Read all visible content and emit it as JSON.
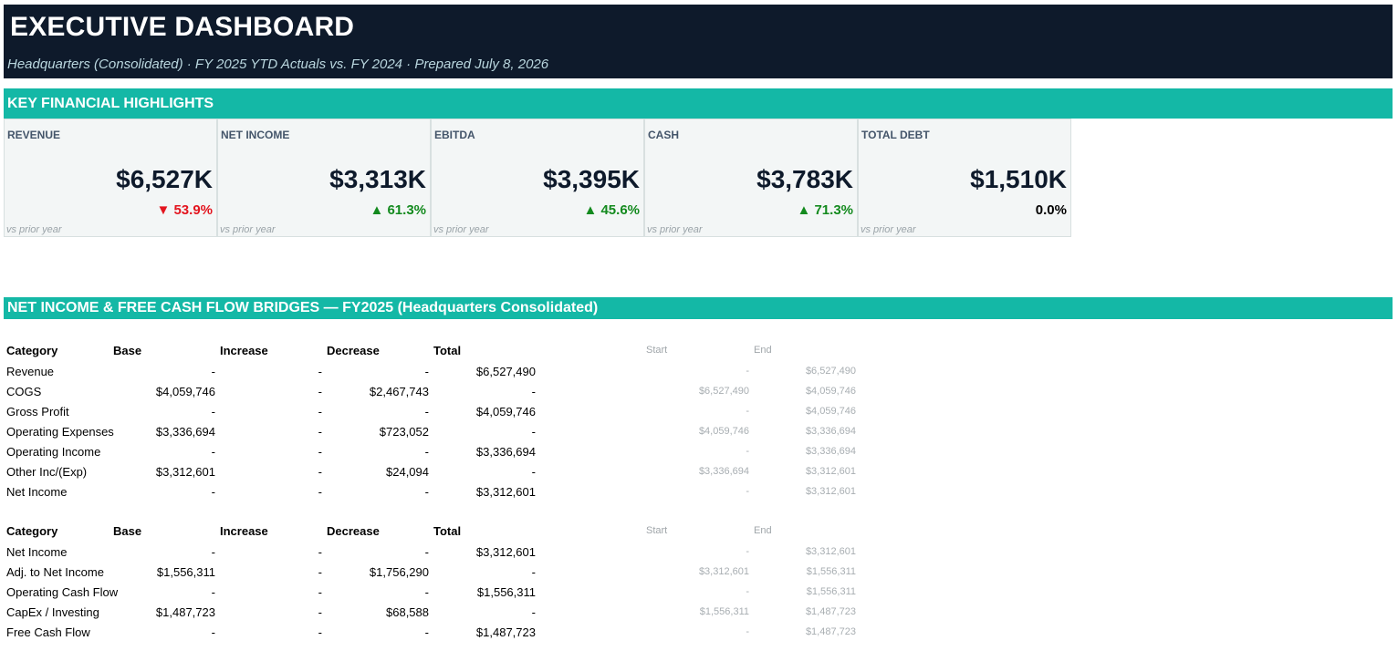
{
  "header": {
    "title": "EXECUTIVE DASHBOARD",
    "subtitle": "Headquarters (Consolidated)  ·  FY 2025 YTD Actuals vs. FY 2024  ·  Prepared July 8, 2026"
  },
  "kpi_section": {
    "title": "KEY FINANCIAL HIGHLIGHTS",
    "cards": [
      {
        "label": "REVENUE",
        "value": "$6,527K",
        "change": "▼ 53.9%",
        "direction": "down",
        "foot": "vs prior year"
      },
      {
        "label": "NET INCOME",
        "value": "$3,313K",
        "change": "▲ 61.3%",
        "direction": "up",
        "foot": "vs prior year"
      },
      {
        "label": "EBITDA",
        "value": "$3,395K",
        "change": "▲ 45.6%",
        "direction": "up",
        "foot": "vs prior year"
      },
      {
        "label": "CASH",
        "value": "$3,783K",
        "change": "▲ 71.3%",
        "direction": "up",
        "foot": "vs prior year"
      },
      {
        "label": "TOTAL DEBT",
        "value": "$1,510K",
        "change": "0.0%",
        "direction": "flat",
        "foot": "vs prior year"
      }
    ]
  },
  "bridge_section": {
    "title": "NET INCOME & FREE CASH FLOW BRIDGES — FY2025 (Headquarters Consolidated)",
    "columns": {
      "category": "Category",
      "base": "Base",
      "increase": "Increase",
      "decrease": "Decrease",
      "total": "Total",
      "start": "Start",
      "end": "End"
    },
    "tables": [
      {
        "rows": [
          {
            "category": "Revenue",
            "base": "-",
            "increase": "-",
            "decrease": "-",
            "total": "$6,527,490",
            "start": "-",
            "end": "$6,527,490"
          },
          {
            "category": "COGS",
            "base": "$4,059,746",
            "increase": "-",
            "decrease": "$2,467,743",
            "total": "-",
            "start": "$6,527,490",
            "end": "$4,059,746"
          },
          {
            "category": "Gross Profit",
            "base": "-",
            "increase": "-",
            "decrease": "-",
            "total": "$4,059,746",
            "start": "-",
            "end": "$4,059,746"
          },
          {
            "category": "Operating Expenses",
            "base": "$3,336,694",
            "increase": "-",
            "decrease": "$723,052",
            "total": "-",
            "start": "$4,059,746",
            "end": "$3,336,694"
          },
          {
            "category": "Operating Income",
            "base": "-",
            "increase": "-",
            "decrease": "-",
            "total": "$3,336,694",
            "start": "-",
            "end": "$3,336,694"
          },
          {
            "category": "Other Inc/(Exp)",
            "base": "$3,312,601",
            "increase": "-",
            "decrease": "$24,094",
            "total": "-",
            "start": "$3,336,694",
            "end": "$3,312,601"
          },
          {
            "category": "Net Income",
            "base": "-",
            "increase": "-",
            "decrease": "-",
            "total": "$3,312,601",
            "start": "-",
            "end": "$3,312,601"
          }
        ]
      },
      {
        "rows": [
          {
            "category": "Net Income",
            "base": "-",
            "increase": "-",
            "decrease": "-",
            "total": "$3,312,601",
            "start": "-",
            "end": "$3,312,601"
          },
          {
            "category": "Adj. to Net Income",
            "base": "$1,556,311",
            "increase": "-",
            "decrease": "$1,756,290",
            "total": "-",
            "start": "$3,312,601",
            "end": "$1,556,311"
          },
          {
            "category": "Operating Cash Flow",
            "base": "-",
            "increase": "-",
            "decrease": "-",
            "total": "$1,556,311",
            "start": "-",
            "end": "$1,556,311"
          },
          {
            "category": "CapEx / Investing",
            "base": "$1,487,723",
            "increase": "-",
            "decrease": "$68,588",
            "total": "-",
            "start": "$1,556,311",
            "end": "$1,487,723"
          },
          {
            "category": "Free Cash Flow",
            "base": "-",
            "increase": "-",
            "decrease": "-",
            "total": "$1,487,723",
            "start": "-",
            "end": "$1,487,723"
          }
        ]
      }
    ]
  }
}
